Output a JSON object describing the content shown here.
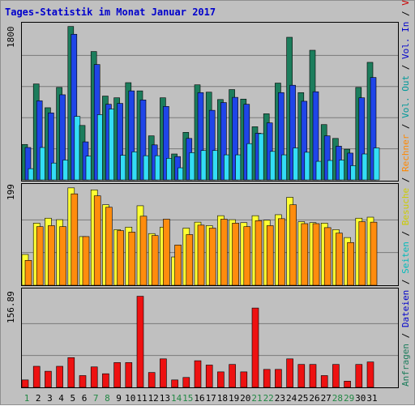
{
  "title": "Tages-Statistik im Monat Januar 2017",
  "colors": {
    "anfragen": "#1c7d5c",
    "dateien": "#1f45e8",
    "seiten": "#33ddf5",
    "besuche": "#ffff33",
    "rechner": "#ff8c0d",
    "volumen": "#ee1111",
    "weekend_label": "#228844",
    "weekday_label": "#000000"
  },
  "legend_right": [
    {
      "text": "Anfragen",
      "color": "#1c7d5c"
    },
    {
      "text": " / ",
      "color": "#000000"
    },
    {
      "text": "Dateien",
      "color": "#0000cc"
    },
    {
      "text": " / ",
      "color": "#000000"
    },
    {
      "text": "Seiten",
      "color": "#00bbbb"
    },
    {
      "text": " / ",
      "color": "#000000"
    },
    {
      "text": "Besuche",
      "color": "#cccc00"
    },
    {
      "text": " / ",
      "color": "#000000"
    },
    {
      "text": "Rechner",
      "color": "#ff8800"
    },
    {
      "text": " / ",
      "color": "#000000"
    },
    {
      "text": "Vol. Out",
      "color": "#009999"
    },
    {
      "text": " / ",
      "color": "#000000"
    },
    {
      "text": "Vol. In",
      "color": "#0000cc"
    },
    {
      "text": " / ",
      "color": "#000000"
    },
    {
      "text": "Volumen",
      "color": "#cc0000"
    }
  ],
  "chart_data": [
    {
      "type": "bar",
      "name": "hits",
      "ylabel": "1800",
      "ylim": [
        0,
        1800
      ],
      "grid": true,
      "categories": [
        "1",
        "2",
        "3",
        "4",
        "5",
        "6",
        "7",
        "8",
        "9",
        "10",
        "11",
        "12",
        "13",
        "14",
        "15",
        "16",
        "17",
        "18",
        "19",
        "20",
        "21",
        "22",
        "23",
        "24",
        "25",
        "26",
        "27",
        "28",
        "29",
        "30",
        "31"
      ],
      "weekend": [
        true,
        false,
        false,
        false,
        false,
        false,
        true,
        true,
        false,
        false,
        false,
        false,
        false,
        true,
        true,
        false,
        false,
        false,
        false,
        false,
        true,
        true,
        false,
        false,
        false,
        false,
        false,
        true,
        true,
        false,
        false
      ],
      "series": [
        {
          "name": "Anfragen",
          "values": [
            410,
            1110,
            835,
            1070,
            1775,
            630,
            1485,
            970,
            950,
            1125,
            1030,
            510,
            950,
            300,
            550,
            1100,
            1015,
            930,
            1045,
            935,
            615,
            765,
            1120,
            1650,
            1010,
            1500,
            640,
            480,
            355,
            1070,
            1360
          ]
        },
        {
          "name": "Dateien",
          "values": [
            375,
            915,
            775,
            985,
            1685,
            440,
            1335,
            875,
            885,
            1030,
            925,
            405,
            850,
            270,
            480,
            1010,
            805,
            895,
            955,
            875,
            540,
            660,
            1010,
            1095,
            910,
            1020,
            510,
            390,
            310,
            950,
            1185
          ]
        },
        {
          "name": "Seiten",
          "values": [
            130,
            375,
            195,
            230,
            735,
            275,
            755,
            820,
            285,
            325,
            280,
            280,
            250,
            140,
            315,
            340,
            340,
            290,
            290,
            420,
            535,
            330,
            290,
            370,
            320,
            215,
            225,
            230,
            165,
            300,
            370
          ]
        }
      ]
    },
    {
      "type": "bar",
      "name": "visits",
      "ylabel": "199",
      "ylim": [
        0,
        199
      ],
      "grid": true,
      "categories": [
        "1",
        "2",
        "3",
        "4",
        "5",
        "6",
        "7",
        "8",
        "9",
        "10",
        "11",
        "12",
        "13",
        "14",
        "15",
        "16",
        "17",
        "18",
        "19",
        "20",
        "21",
        "22",
        "23",
        "24",
        "25",
        "26",
        "27",
        "28",
        "29",
        "30",
        "31"
      ],
      "series": [
        {
          "name": "Besuche",
          "values": [
            62,
            125,
            135,
            132,
            196,
            98,
            192,
            162,
            112,
            117,
            160,
            104,
            117,
            57,
            115,
            127,
            120,
            140,
            132,
            126,
            140,
            131,
            142,
            177,
            128,
            126,
            125,
            112,
            96,
            135,
            137
          ]
        },
        {
          "name": "Rechner",
          "values": [
            50,
            118,
            120,
            118,
            184,
            98,
            180,
            157,
            110,
            107,
            139,
            100,
            133,
            81,
            102,
            121,
            115,
            133,
            125,
            118,
            130,
            120,
            134,
            162,
            124,
            124,
            116,
            105,
            86,
            128,
            127
          ]
        }
      ]
    },
    {
      "type": "bar",
      "name": "volume",
      "ylabel": "156.89",
      "ylim": [
        0,
        156.89
      ],
      "grid": true,
      "categories": [
        "1",
        "2",
        "3",
        "4",
        "5",
        "6",
        "7",
        "8",
        "9",
        "10",
        "11",
        "12",
        "13",
        "14",
        "15",
        "16",
        "17",
        "18",
        "19",
        "20",
        "21",
        "22",
        "23",
        "24",
        "25",
        "26",
        "27",
        "28",
        "29",
        "30",
        "31"
      ],
      "series": [
        {
          "name": "Volumen",
          "values": [
            12,
            34,
            26,
            34,
            48,
            19,
            33,
            22,
            40,
            40,
            147,
            24,
            46,
            12,
            16,
            43,
            36,
            25,
            37,
            25,
            128,
            29,
            29,
            46,
            37,
            37,
            19,
            37,
            10,
            37,
            41
          ]
        }
      ]
    }
  ]
}
